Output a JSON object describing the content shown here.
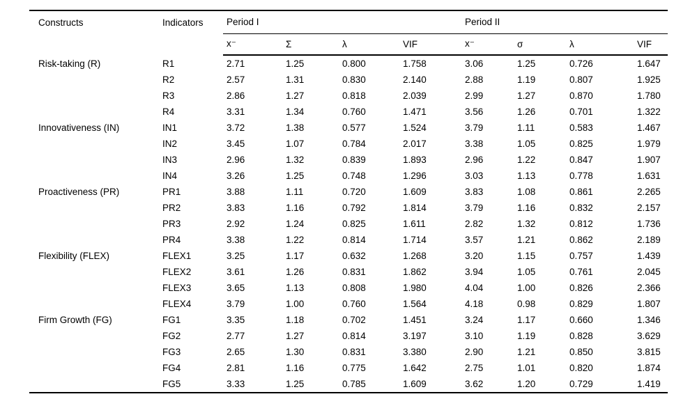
{
  "table": {
    "headers": {
      "constructs": "Constructs",
      "indicators": "Indicators",
      "period1": "Period I",
      "period2": "Period II",
      "p1_sub": [
        "x⁻",
        "Σ",
        "λ",
        "VIF"
      ],
      "p2_sub": [
        "x⁻",
        "σ",
        "λ",
        "VIF"
      ]
    },
    "groups": [
      {
        "construct": "Risk-taking (R)",
        "rows": [
          {
            "indicator": "R1",
            "p1": [
              "2.71",
              "1.25",
              "0.800",
              "1.758"
            ],
            "p2": [
              "3.06",
              "1.25",
              "0.726",
              "1.647"
            ]
          },
          {
            "indicator": "R2",
            "p1": [
              "2.57",
              "1.31",
              "0.830",
              "2.140"
            ],
            "p2": [
              "2.88",
              "1.19",
              "0.807",
              "1.925"
            ]
          },
          {
            "indicator": "R3",
            "p1": [
              "2.86",
              "1.27",
              "0.818",
              "2.039"
            ],
            "p2": [
              "2.99",
              "1.27",
              "0.870",
              "1.780"
            ]
          },
          {
            "indicator": "R4",
            "p1": [
              "3.31",
              "1.34",
              "0.760",
              "1.471"
            ],
            "p2": [
              "3.56",
              "1.26",
              "0.701",
              "1.322"
            ]
          }
        ]
      },
      {
        "construct": "Innovativeness (IN)",
        "rows": [
          {
            "indicator": "IN1",
            "p1": [
              "3.72",
              "1.38",
              "0.577",
              "1.524"
            ],
            "p2": [
              "3.79",
              "1.11",
              "0.583",
              "1.467"
            ]
          },
          {
            "indicator": "IN2",
            "p1": [
              "3.45",
              "1.07",
              "0.784",
              "2.017"
            ],
            "p2": [
              "3.38",
              "1.05",
              "0.825",
              "1.979"
            ]
          },
          {
            "indicator": "IN3",
            "p1": [
              "2.96",
              "1.32",
              "0.839",
              "1.893"
            ],
            "p2": [
              "2.96",
              "1.22",
              "0.847",
              "1.907"
            ]
          },
          {
            "indicator": "IN4",
            "p1": [
              "3.26",
              "1.25",
              "0.748",
              "1.296"
            ],
            "p2": [
              "3.03",
              "1.13",
              "0.778",
              "1.631"
            ]
          }
        ]
      },
      {
        "construct": "Proactiveness (PR)",
        "rows": [
          {
            "indicator": "PR1",
            "p1": [
              "3.88",
              "1.11",
              "0.720",
              "1.609"
            ],
            "p2": [
              "3.83",
              "1.08",
              "0.861",
              "2.265"
            ]
          },
          {
            "indicator": "PR2",
            "p1": [
              "3.83",
              "1.16",
              "0.792",
              "1.814"
            ],
            "p2": [
              "3.79",
              "1.16",
              "0.832",
              "2.157"
            ]
          },
          {
            "indicator": "PR3",
            "p1": [
              "2.92",
              "1.24",
              "0.825",
              "1.611"
            ],
            "p2": [
              "2.82",
              "1.32",
              "0.812",
              "1.736"
            ]
          },
          {
            "indicator": "PR4",
            "p1": [
              "3.38",
              "1.22",
              "0.814",
              "1.714"
            ],
            "p2": [
              "3.57",
              "1.21",
              "0.862",
              "2.189"
            ]
          }
        ]
      },
      {
        "construct": "Flexibility (FLEX)",
        "rows": [
          {
            "indicator": "FLEX1",
            "p1": [
              "3.25",
              "1.17",
              "0.632",
              "1.268"
            ],
            "p2": [
              "3.20",
              "1.15",
              "0.757",
              "1.439"
            ]
          },
          {
            "indicator": "FLEX2",
            "p1": [
              "3.61",
              "1.26",
              "0.831",
              "1.862"
            ],
            "p2": [
              "3.94",
              "1.05",
              "0.761",
              "2.045"
            ]
          },
          {
            "indicator": "FLEX3",
            "p1": [
              "3.65",
              "1.13",
              "0.808",
              "1.980"
            ],
            "p2": [
              "4.04",
              "1.00",
              "0.826",
              "2.366"
            ]
          },
          {
            "indicator": "FLEX4",
            "p1": [
              "3.79",
              "1.00",
              "0.760",
              "1.564"
            ],
            "p2": [
              "4.18",
              "0.98",
              "0.829",
              "1.807"
            ]
          }
        ]
      },
      {
        "construct": "Firm Growth (FG)",
        "rows": [
          {
            "indicator": "FG1",
            "p1": [
              "3.35",
              "1.18",
              "0.702",
              "1.451"
            ],
            "p2": [
              "3.24",
              "1.17",
              "0.660",
              "1.346"
            ]
          },
          {
            "indicator": "FG2",
            "p1": [
              "2.77",
              "1.27",
              "0.814",
              "3.197"
            ],
            "p2": [
              "3.10",
              "1.19",
              "0.828",
              "3.629"
            ]
          },
          {
            "indicator": "FG3",
            "p1": [
              "2.65",
              "1.30",
              "0.831",
              "3.380"
            ],
            "p2": [
              "2.90",
              "1.21",
              "0.850",
              "3.815"
            ]
          },
          {
            "indicator": "FG4",
            "p1": [
              "2.81",
              "1.16",
              "0.775",
              "1.642"
            ],
            "p2": [
              "2.75",
              "1.01",
              "0.820",
              "1.874"
            ]
          },
          {
            "indicator": "FG5",
            "p1": [
              "3.33",
              "1.25",
              "0.785",
              "1.609"
            ],
            "p2": [
              "3.62",
              "1.20",
              "0.729",
              "1.419"
            ]
          }
        ]
      }
    ]
  }
}
